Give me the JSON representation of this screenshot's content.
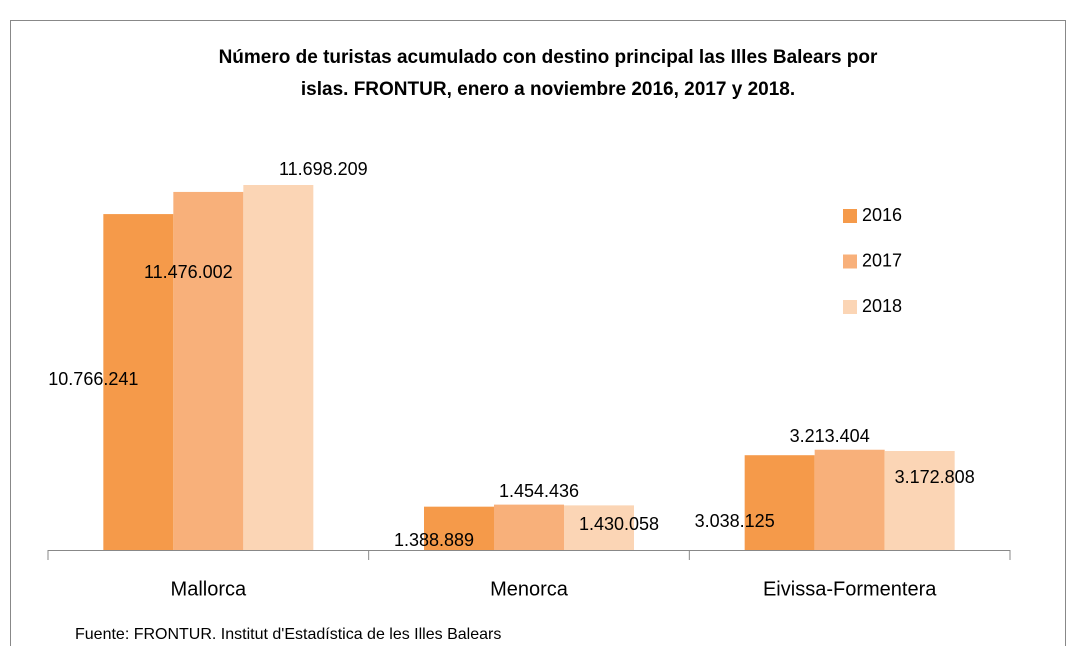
{
  "chart_data": {
    "type": "bar",
    "title": "Número de turistas acumulado con destino principal las Illes Balears por islas. FRONTUR,  enero a noviembre 2016, 2017 y 2018.",
    "categories": [
      "Mallorca",
      "Menorca",
      "Eivissa-Formentera"
    ],
    "series": [
      {
        "name": "2016",
        "color": "#f59a4a",
        "values": [
          10766241,
          1388889,
          3038125
        ],
        "value_labels": [
          "10.766.241",
          "1.388.889",
          "3.038.125"
        ]
      },
      {
        "name": "2017",
        "color": "#f8b07a",
        "values": [
          11476002,
          1454436,
          3213404
        ],
        "value_labels": [
          "11.476.002",
          "1.454.436",
          "3.213.404"
        ]
      },
      {
        "name": "2018",
        "color": "#fbd5b5",
        "values": [
          11698209,
          1430058,
          3172808
        ],
        "value_labels": [
          "11.698.209",
          "1.430.058",
          "3.172.808"
        ]
      }
    ],
    "legend": "right",
    "source": "Fuente: FRONTUR. Institut d'Estadística de les Illes Balears"
  }
}
